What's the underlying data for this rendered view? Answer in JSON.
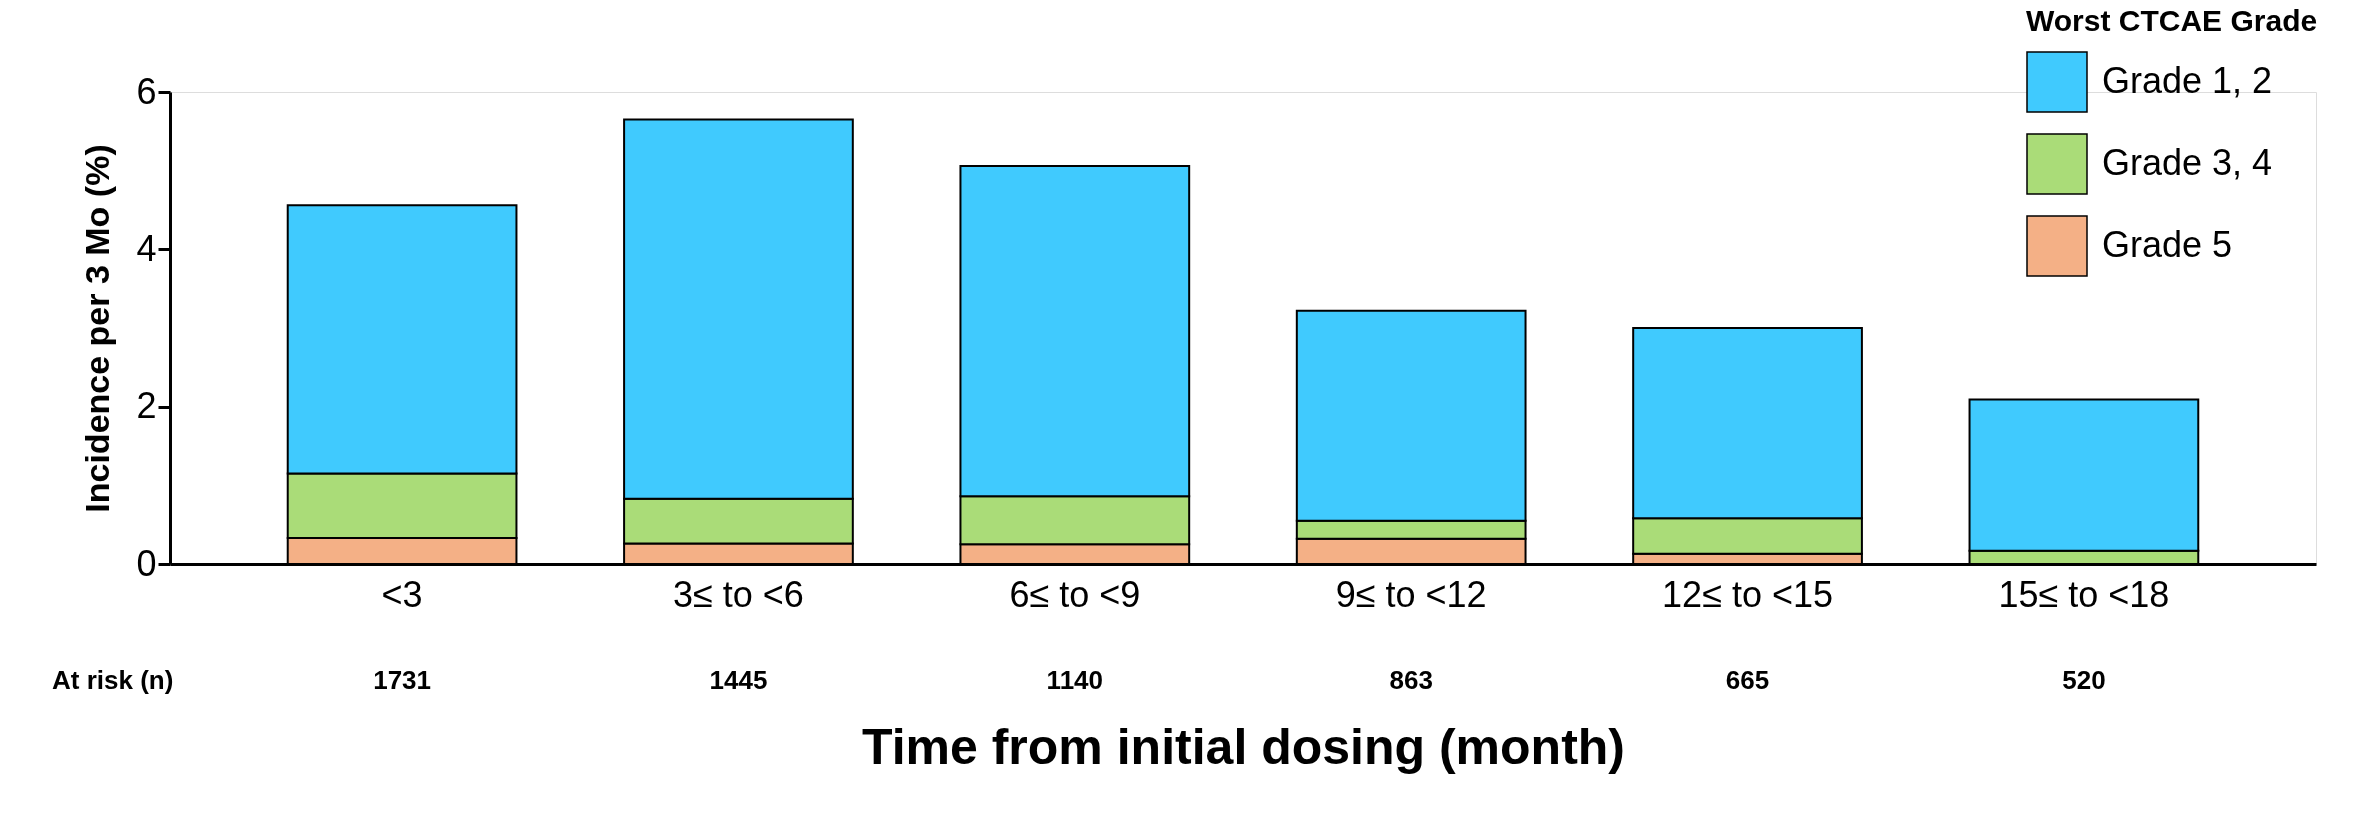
{
  "chart_data": {
    "type": "bar",
    "stacked": true,
    "categories": [
      "<3",
      "3≤ to <6",
      "6≤ to <9",
      "9≤ to <12",
      "12≤ to <15",
      "15≤ to <18"
    ],
    "series": [
      {
        "name": "Grade 5",
        "color": "#f4b086",
        "values": [
          0.33,
          0.26,
          0.25,
          0.32,
          0.13,
          0
        ]
      },
      {
        "name": "Grade 3, 4",
        "color": "#aadc78",
        "values": [
          0.82,
          0.57,
          0.61,
          0.23,
          0.45,
          0.17
        ]
      },
      {
        "name": "Grade 1, 2",
        "color": "#40cafe",
        "values": [
          3.41,
          4.82,
          4.2,
          2.67,
          2.42,
          1.92
        ]
      }
    ],
    "ylabel": "Incidence per 3 Mo (%)",
    "xlabel": "Time from initial dosing (month)",
    "legend_title": "Worst CTCAE Grade",
    "legend": "top right",
    "ylim": [
      0,
      6
    ],
    "yticks": [
      0,
      2,
      4,
      6
    ],
    "grid": false,
    "annotations": [
      "At risk (n)",
      "1731",
      "1445",
      "1140",
      "863",
      "665",
      "520"
    ]
  }
}
